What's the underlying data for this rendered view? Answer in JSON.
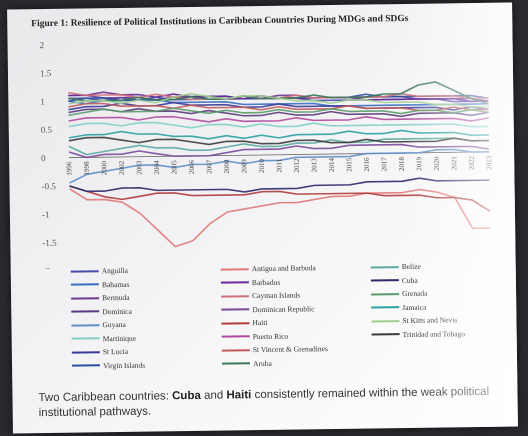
{
  "slide": {
    "figure_title": "Figure 1: Resilience of Political Institutions in Caribbean Countries During MDGs and SDGs",
    "caption_pre": "Two Caribbean countries: ",
    "caption_c1": "Cuba",
    "caption_mid": " and ",
    "caption_c2": "Haiti",
    "caption_post": " consistently remained within the weak political institutional pathways."
  },
  "chart_data": {
    "type": "line",
    "title": "Figure 1: Resilience of Political Institutions in Caribbean Countries During MDGs and SDGs",
    "xlabel": "",
    "ylabel": "",
    "ylim": [
      -2,
      2
    ],
    "yticks": [
      "2",
      "1.5",
      "1",
      "0.5",
      "0",
      "-0.5",
      "-1",
      "-1.5",
      "-2"
    ],
    "x": [
      "1996",
      "1998",
      "2000",
      "2002",
      "2003",
      "2004",
      "2005",
      "2006",
      "2007",
      "2008",
      "2009",
      "2010",
      "2011",
      "2012",
      "2013",
      "2014",
      "2015",
      "2016",
      "2017",
      "2018",
      "2019",
      "2020",
      "2021",
      "2022",
      "2023"
    ],
    "grid": false,
    "legend_placement": "bottom",
    "series": [
      {
        "name": "Anguilla",
        "color": "#4a4aa8",
        "values": [
          1.05,
          1.05,
          1.0,
          1.05,
          1.0,
          1.0,
          1.0,
          1.05,
          1.05,
          1.0,
          1.0,
          1.0,
          1.0,
          1.0,
          0.95,
          0.95,
          0.95,
          0.95,
          0.95,
          0.95,
          0.95,
          0.95,
          0.9,
          0.9,
          0.9
        ]
      },
      {
        "name": "Bahamas",
        "color": "#3a6fc0",
        "values": [
          1.0,
          0.95,
          1.0,
          1.0,
          1.0,
          1.0,
          0.95,
          0.95,
          0.95,
          0.95,
          0.9,
          0.9,
          0.9,
          0.9,
          0.9,
          0.85,
          0.85,
          0.85,
          0.85,
          0.85,
          0.85,
          0.85,
          0.85,
          0.85,
          0.85
        ]
      },
      {
        "name": "Bermuda",
        "color": "#6b3a8f",
        "values": [
          1.1,
          1.1,
          1.05,
          1.05,
          1.05,
          1.0,
          1.05,
          1.05,
          1.0,
          1.0,
          1.0,
          1.0,
          1.05,
          1.05,
          1.0,
          1.0,
          1.0,
          1.0,
          1.0,
          1.0,
          0.95,
          0.95,
          0.95,
          0.95,
          0.9
        ]
      },
      {
        "name": "Dominica",
        "color": "#5a3a7a",
        "values": [
          0.8,
          0.85,
          0.85,
          0.8,
          0.85,
          0.8,
          0.8,
          0.75,
          0.8,
          0.75,
          0.7,
          0.7,
          0.75,
          0.7,
          0.7,
          0.75,
          0.7,
          0.7,
          0.7,
          0.65,
          0.7,
          0.7,
          0.7,
          0.65,
          0.7
        ]
      },
      {
        "name": "Guyana",
        "color": "#5e8fc8",
        "values": [
          -0.45,
          -0.3,
          -0.25,
          -0.2,
          -0.15,
          -0.15,
          -0.2,
          -0.15,
          -0.15,
          -0.1,
          -0.15,
          -0.1,
          -0.1,
          -0.05,
          -0.05,
          -0.05,
          -0.05,
          0.0,
          0.0,
          0.0,
          0.0,
          0.05,
          0.05,
          0.0,
          0.0
        ]
      },
      {
        "name": "Martinique",
        "color": "#7fd0c8",
        "values": [
          0.55,
          0.6,
          0.6,
          0.55,
          0.6,
          0.6,
          0.55,
          0.5,
          0.55,
          0.55,
          0.5,
          0.55,
          0.5,
          0.5,
          0.55,
          0.5,
          0.5,
          0.5,
          0.5,
          0.5,
          0.5,
          0.5,
          0.5,
          0.45,
          0.45
        ]
      },
      {
        "name": "St Lucia",
        "color": "#3a3a9a",
        "values": [
          0.85,
          0.9,
          0.9,
          0.95,
          0.9,
          0.9,
          0.95,
          0.9,
          0.9,
          0.9,
          0.85,
          0.85,
          0.9,
          0.85,
          0.85,
          0.85,
          0.85,
          0.8,
          0.8,
          0.8,
          0.8,
          0.8,
          0.75,
          0.8,
          0.75
        ]
      },
      {
        "name": "Virgin Islands",
        "color": "#2f4fa0",
        "values": [
          1.0,
          1.05,
          1.05,
          1.0,
          1.0,
          1.05,
          1.0,
          1.0,
          1.05,
          1.05,
          1.0,
          1.0,
          1.0,
          1.0,
          1.0,
          1.0,
          1.0,
          1.05,
          1.0,
          1.0,
          1.0,
          1.0,
          1.0,
          1.0,
          0.95
        ]
      },
      {
        "name": "Antigua and Barbuda",
        "color": "#e07878",
        "values": [
          -0.55,
          -0.75,
          -0.75,
          -0.8,
          -1.0,
          -1.3,
          -1.6,
          -1.5,
          -1.2,
          -1.0,
          -0.95,
          -0.9,
          -0.85,
          -0.85,
          -0.8,
          -0.75,
          -0.75,
          -0.7,
          -0.7,
          -0.7,
          -0.65,
          -0.7,
          -0.8,
          -1.35,
          -1.35
        ]
      },
      {
        "name": "Barbados",
        "color": "#6a2a9a",
        "values": [
          1.1,
          1.1,
          1.15,
          1.1,
          1.1,
          1.05,
          1.1,
          1.05,
          1.05,
          1.05,
          1.0,
          1.05,
          1.0,
          1.0,
          1.0,
          1.0,
          1.0,
          0.95,
          0.95,
          0.95,
          0.95,
          0.95,
          0.95,
          0.9,
          0.9
        ]
      },
      {
        "name": "Cayman Islands",
        "color": "#d0707a",
        "values": [
          1.15,
          1.1,
          1.1,
          1.1,
          1.05,
          1.1,
          1.05,
          1.0,
          1.0,
          1.0,
          1.05,
          1.0,
          1.0,
          1.05,
          1.0,
          1.0,
          1.0,
          1.0,
          1.0,
          1.05,
          1.0,
          1.0,
          1.0,
          0.95,
          0.95
        ]
      },
      {
        "name": "Dominican Republic",
        "color": "#7a4a9a",
        "values": [
          0.1,
          0.0,
          0.05,
          0.05,
          0.1,
          0.05,
          0.0,
          0.0,
          0.0,
          0.05,
          0.1,
          0.1,
          0.1,
          0.15,
          0.1,
          0.1,
          0.15,
          0.15,
          0.15,
          0.15,
          0.1,
          0.1,
          0.1,
          0.1,
          0.05
        ]
      },
      {
        "name": "Haiti",
        "color": "#b03a3a",
        "values": [
          -0.5,
          -0.6,
          -0.7,
          -0.75,
          -0.7,
          -0.65,
          -0.65,
          -0.7,
          -0.7,
          -0.7,
          -0.7,
          -0.65,
          -0.65,
          -0.7,
          -0.7,
          -0.7,
          -0.7,
          -0.7,
          -0.75,
          -0.75,
          -0.75,
          -0.8,
          -0.8,
          -0.85,
          -1.05
        ]
      },
      {
        "name": "Puerto Rico",
        "color": "#b04aa0",
        "values": [
          0.65,
          0.7,
          0.7,
          0.7,
          0.65,
          0.7,
          0.7,
          0.65,
          0.6,
          0.65,
          0.6,
          0.6,
          0.6,
          0.65,
          0.6,
          0.6,
          0.6,
          0.65,
          0.6,
          0.6,
          0.6,
          0.6,
          0.6,
          0.55,
          0.6
        ]
      },
      {
        "name": "St Vincent & Grenadines",
        "color": "#c05a5a",
        "values": [
          0.9,
          0.95,
          0.95,
          0.9,
          0.9,
          0.9,
          0.85,
          0.9,
          0.85,
          0.85,
          0.85,
          0.8,
          0.85,
          0.8,
          0.8,
          0.8,
          0.85,
          0.8,
          0.8,
          0.8,
          0.75,
          0.75,
          0.8,
          0.75,
          0.75
        ]
      },
      {
        "name": "Aruba",
        "color": "#3a7a5a",
        "values": [
          1.05,
          1.0,
          1.0,
          1.0,
          1.05,
          1.0,
          1.0,
          1.05,
          1.0,
          1.0,
          1.05,
          1.0,
          1.0,
          1.0,
          1.05,
          1.0,
          1.0,
          1.0,
          1.05,
          1.05,
          1.2,
          1.25,
          1.1,
          0.95,
          0.85
        ]
      },
      {
        "name": "Belize",
        "color": "#5aaaa0",
        "values": [
          0.2,
          0.05,
          0.1,
          0.15,
          0.2,
          0.15,
          0.15,
          0.1,
          0.1,
          0.15,
          0.2,
          0.15,
          0.15,
          0.2,
          0.2,
          0.25,
          0.2,
          0.2,
          0.25,
          0.25,
          0.25,
          0.25,
          0.25,
          0.2,
          0.2
        ]
      },
      {
        "name": "Cuba",
        "color": "#2a2a6a",
        "values": [
          -0.5,
          -0.6,
          -0.6,
          -0.55,
          -0.55,
          -0.6,
          -0.6,
          -0.6,
          -0.6,
          -0.6,
          -0.65,
          -0.6,
          -0.6,
          -0.6,
          -0.55,
          -0.55,
          -0.55,
          -0.5,
          -0.5,
          -0.5,
          -0.45,
          -0.5,
          -0.5,
          -0.5,
          -0.5
        ]
      },
      {
        "name": "Grenada",
        "color": "#5a9a6a",
        "values": [
          0.75,
          0.8,
          0.85,
          0.8,
          0.8,
          0.8,
          0.85,
          0.8,
          0.75,
          0.8,
          0.75,
          0.75,
          0.8,
          0.75,
          0.75,
          0.8,
          0.75,
          0.75,
          0.75,
          0.7,
          0.75,
          0.75,
          0.7,
          0.75,
          0.7
        ]
      },
      {
        "name": "Jamaica",
        "color": "#2aa0a0",
        "values": [
          0.35,
          0.4,
          0.4,
          0.45,
          0.4,
          0.4,
          0.35,
          0.35,
          0.3,
          0.35,
          0.3,
          0.35,
          0.3,
          0.35,
          0.35,
          0.35,
          0.4,
          0.35,
          0.35,
          0.4,
          0.35,
          0.35,
          0.35,
          0.3,
          0.3
        ]
      },
      {
        "name": "St Kitts and Nevis",
        "color": "#a0d090",
        "values": [
          0.95,
          1.0,
          1.0,
          0.95,
          1.0,
          0.95,
          1.05,
          1.1,
          1.05,
          1.0,
          1.05,
          1.05,
          1.0,
          0.95,
          0.95,
          0.9,
          0.95,
          0.95,
          0.9,
          0.9,
          0.9,
          0.85,
          0.85,
          0.8,
          0.8
        ]
      },
      {
        "name": "Trinidad and Tobago",
        "color": "#3a3a3a",
        "values": [
          0.3,
          0.35,
          0.35,
          0.3,
          0.25,
          0.3,
          0.3,
          0.25,
          0.2,
          0.25,
          0.25,
          0.2,
          0.2,
          0.25,
          0.25,
          0.2,
          0.2,
          0.25,
          0.2,
          0.2,
          0.2,
          0.2,
          0.25,
          0.2,
          0.2
        ]
      }
    ]
  }
}
